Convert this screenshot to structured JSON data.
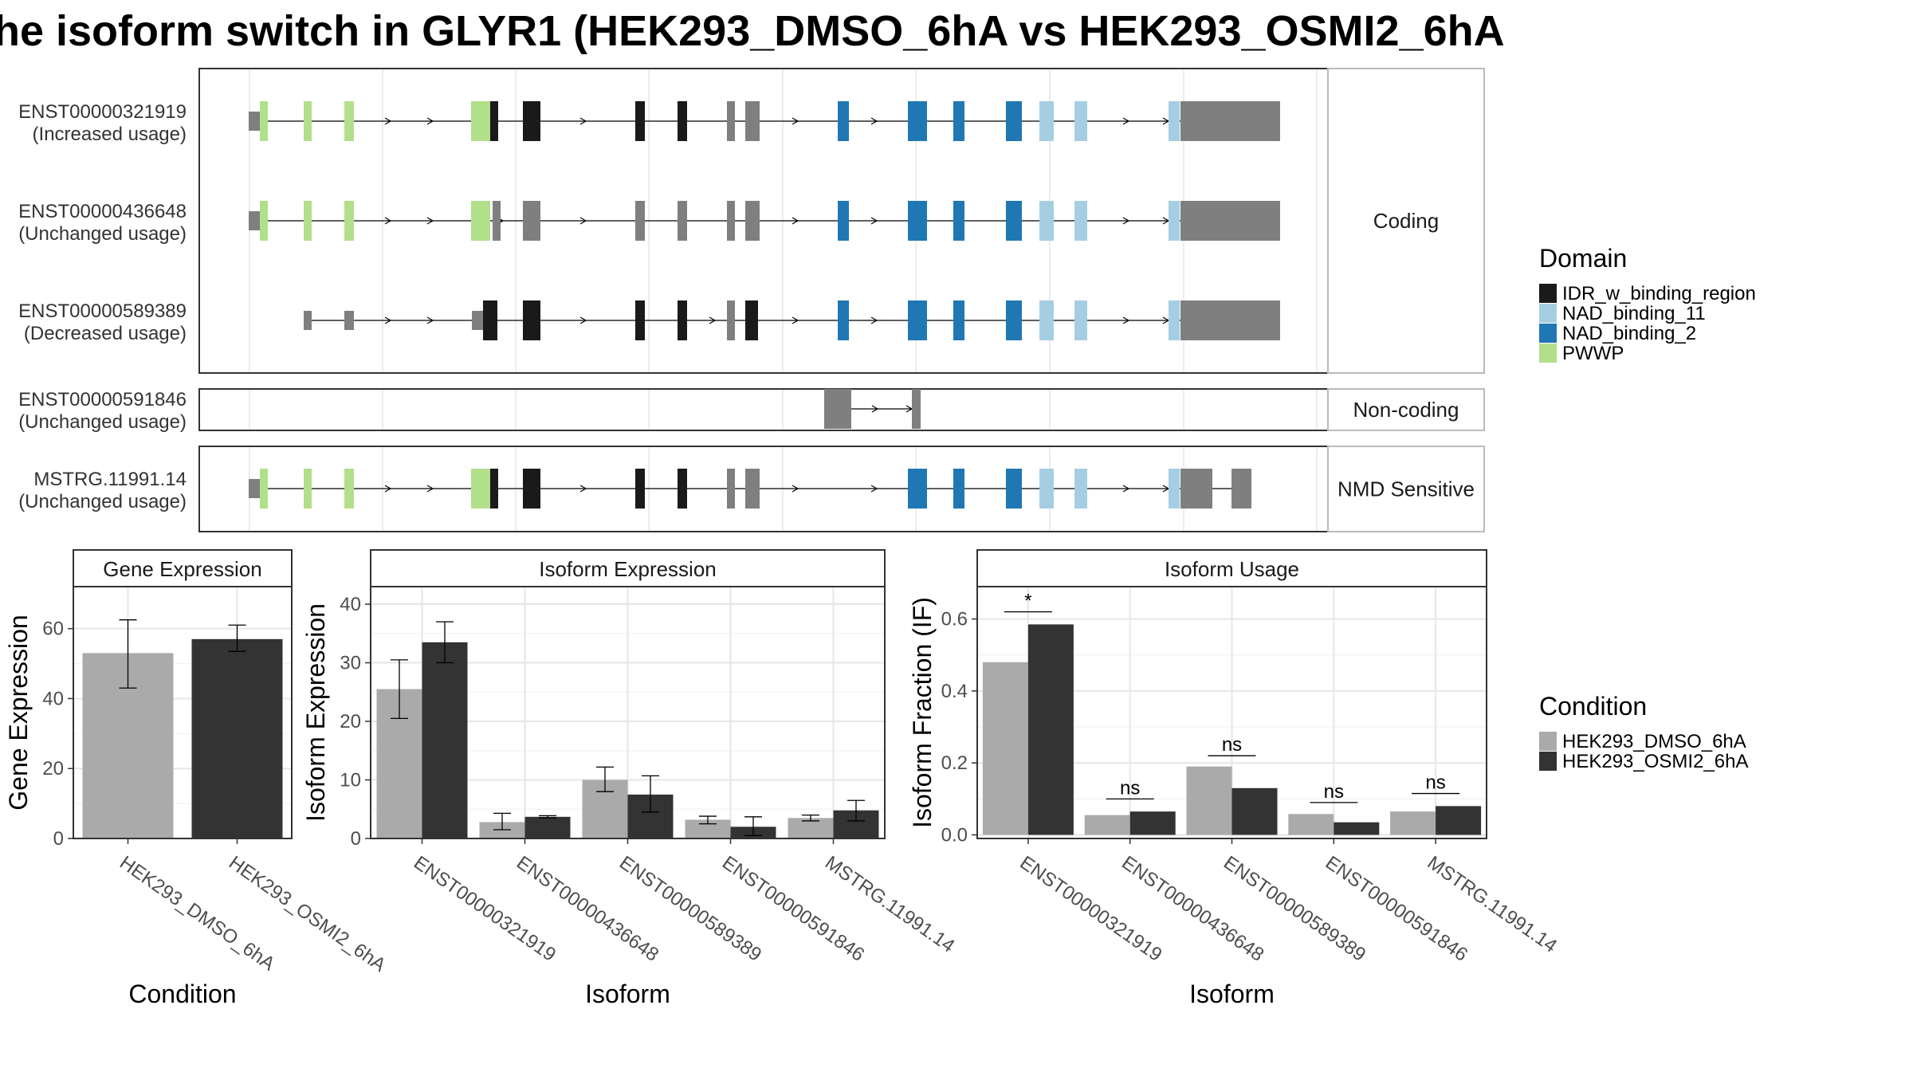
{
  "title": "he isoform switch in GLYR1 (HEK293_DMSO_6hA vs HEK293_OSMI2_6hA",
  "colors": {
    "IDR_w_binding_region": "#1a1a1a",
    "NAD_binding_11": "#a6cee3",
    "NAD_binding_2": "#1f78b4",
    "PWWP": "#b2df8a",
    "nodomain": "#7f7f7f",
    "cond1": "#aaaaaa",
    "cond2": "#333333"
  },
  "transcripts": [
    {
      "id": "ENST00000321919",
      "usage": "(Increased usage)",
      "facet": 0
    },
    {
      "id": "ENST00000436648",
      "usage": "(Unchanged usage)",
      "facet": 0
    },
    {
      "id": "ENST00000589389",
      "usage": "(Decreased usage)",
      "facet": 0
    },
    {
      "id": "ENST00000591846",
      "usage": "(Unchanged usage)",
      "facet": 1
    },
    {
      "id": "MSTRG.11991.14",
      "usage": "(Unchanged usage)",
      "facet": 2
    }
  ],
  "facets": [
    "Coding",
    "Non-coding",
    "NMD Sensitive"
  ],
  "domain_legend": {
    "title": "Domain",
    "items": [
      {
        "name": "IDR_w_binding_region",
        "key": "IDR_w_binding_region"
      },
      {
        "name": "NAD_binding_11",
        "key": "NAD_binding_11"
      },
      {
        "name": "NAD_binding_2",
        "key": "NAD_binding_2"
      },
      {
        "name": "PWWP",
        "key": "PWWP"
      }
    ]
  },
  "condition_legend": {
    "title": "Condition",
    "items": [
      "HEK293_DMSO_6hA",
      "HEK293_OSMI2_6hA"
    ]
  },
  "chart_data": [
    {
      "type": "bar",
      "title": "Gene Expression",
      "xlabel": "Condition",
      "ylabel": "Gene Expression",
      "ylim": [
        0,
        72
      ],
      "yticks": [
        0,
        20,
        40,
        60
      ],
      "categories": [
        "HEK293_DMSO_6hA",
        "HEK293_OSMI2_6hA"
      ],
      "series": [
        {
          "name": "HEK293_DMSO_6hA",
          "values": [
            53,
            null
          ],
          "err_low": [
            43,
            null
          ],
          "err_high": [
            62.5,
            null
          ]
        },
        {
          "name": "HEK293_OSMI2_6hA",
          "values": [
            null,
            57
          ],
          "err_low": [
            null,
            53.5
          ],
          "err_high": [
            null,
            61
          ]
        }
      ]
    },
    {
      "type": "bar",
      "title": "Isoform Expression",
      "xlabel": "Isoform",
      "ylabel": "Isoform Expression",
      "ylim": [
        0,
        43
      ],
      "yticks": [
        0,
        10,
        20,
        30,
        40
      ],
      "categories": [
        "ENST00000321919",
        "ENST00000436648",
        "ENST00000589389",
        "ENST00000591846",
        "MSTRG.11991.14"
      ],
      "series": [
        {
          "name": "HEK293_DMSO_6hA",
          "values": [
            25.5,
            2.8,
            10,
            3.2,
            3.5
          ],
          "err_low": [
            20.5,
            1.5,
            8,
            2.5,
            3
          ],
          "err_high": [
            30.5,
            4.3,
            12.2,
            3.8,
            4
          ]
        },
        {
          "name": "HEK293_OSMI2_6hA",
          "values": [
            33.5,
            3.7,
            7.5,
            2.0,
            4.8
          ],
          "err_low": [
            30,
            3.5,
            4.5,
            0.5,
            3
          ],
          "err_high": [
            37,
            3.9,
            10.7,
            3.7,
            6.5
          ]
        }
      ]
    },
    {
      "type": "bar",
      "title": "Isoform Usage",
      "xlabel": "Isoform",
      "ylabel": "Isoform Fraction (IF)",
      "ylim": [
        -0.01,
        0.69
      ],
      "yticks": [
        0.0,
        0.2,
        0.4,
        0.6
      ],
      "categories": [
        "ENST00000321919",
        "ENST00000436648",
        "ENST00000589389",
        "ENST00000591846",
        "MSTRG.11991.14"
      ],
      "series": [
        {
          "name": "HEK293_DMSO_6hA",
          "values": [
            0.48,
            0.055,
            0.19,
            0.058,
            0.065
          ]
        },
        {
          "name": "HEK293_OSMI2_6hA",
          "values": [
            0.585,
            0.065,
            0.13,
            0.035,
            0.08
          ]
        }
      ],
      "significance": [
        "*",
        "ns",
        "ns",
        "ns",
        "ns"
      ],
      "sig_values": [
        0.62,
        0.1,
        0.22,
        0.09,
        0.115
      ]
    }
  ]
}
